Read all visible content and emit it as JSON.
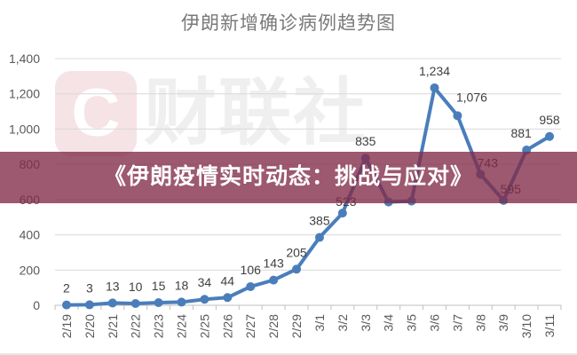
{
  "header": {
    "chart_title": "伊朗新增确诊病例趋势图"
  },
  "watermark": {
    "logo_letter": "C",
    "text": "财联社"
  },
  "banner": {
    "text": "《伊朗疫情实时动态：挑战与应对》",
    "background": "#8a3457"
  },
  "colors": {
    "line": "#4a7ebb",
    "grid": "#d9d9d9",
    "axis_text": "#595959"
  },
  "y_ticks": [
    "0",
    "200",
    "400",
    "600",
    "800",
    "1,000",
    "1,200",
    "1,400"
  ],
  "chart_data": {
    "type": "line",
    "title": "伊朗新增确诊病例趋势图",
    "xlabel": "",
    "ylabel": "",
    "ylim": [
      0,
      1400
    ],
    "grid": true,
    "legend": "none",
    "categories": [
      "2/19",
      "2/20",
      "2/21",
      "2/22",
      "2/23",
      "2/24",
      "2/25",
      "2/26",
      "2/27",
      "2/28",
      "2/29",
      "3/1",
      "3/2",
      "3/3",
      "3/4",
      "3/5",
      "3/6",
      "3/7",
      "3/8",
      "3/9",
      "3/10",
      "3/11"
    ],
    "series": [
      {
        "name": "新增确诊病例",
        "values": [
          2,
          3,
          13,
          10,
          15,
          18,
          34,
          44,
          106,
          143,
          205,
          385,
          523,
          835,
          586,
          591,
          1234,
          1076,
          743,
          595,
          881,
          958
        ],
        "labels": [
          "2",
          "3",
          "13",
          "10",
          "15",
          "18",
          "34",
          "44",
          "106",
          "143",
          "205",
          "385",
          "523",
          "835",
          "",
          "",
          "1,234",
          "1,076",
          "743",
          "595",
          "881",
          "958"
        ]
      }
    ]
  }
}
